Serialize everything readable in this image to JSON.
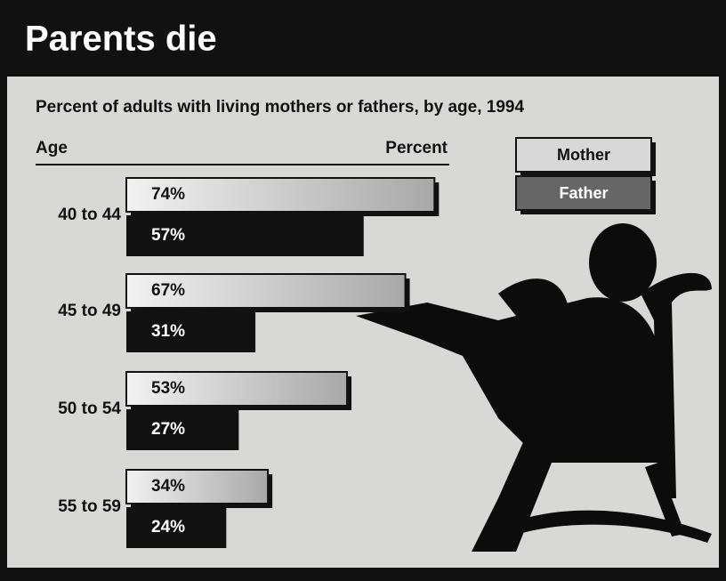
{
  "chart_data": {
    "type": "bar",
    "orientation": "horizontal",
    "title": "Parents die",
    "subtitle": "Percent of adults with living mothers or fathers, by age, 1994",
    "y_label": "Age",
    "x_label": "Percent",
    "categories": [
      "40 to 44",
      "45 to 49",
      "50 to 54",
      "55 to 59"
    ],
    "series": [
      {
        "name": "Mother",
        "color": "#c8c8c8",
        "values": [
          74,
          67,
          53,
          34
        ],
        "value_labels": [
          "74%",
          "67%",
          "53%",
          "34%"
        ]
      },
      {
        "name": "Father",
        "color": "#111111",
        "values": [
          57,
          31,
          27,
          24
        ],
        "value_labels": [
          "57%",
          "31%",
          "27%",
          "24%"
        ]
      }
    ],
    "legend": "top-right"
  }
}
